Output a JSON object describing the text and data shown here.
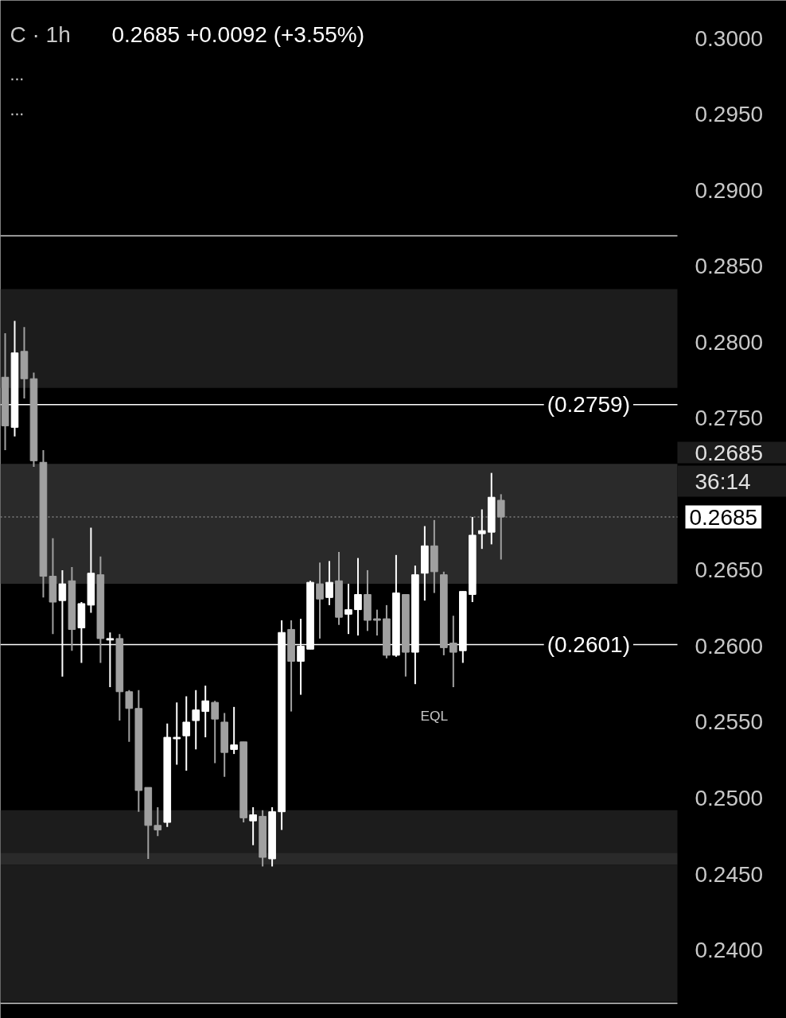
{
  "chart_data": {
    "type": "candlestick",
    "title": "C · 1h",
    "subtitle": "0.2685  +0.0092 (+3.55%)",
    "categories": [
      null,
      null,
      null,
      null,
      null,
      null,
      null,
      null,
      null,
      null,
      null,
      null,
      null,
      null,
      null,
      null,
      null,
      null,
      null,
      null,
      null,
      null,
      null,
      null,
      null,
      null,
      null,
      null,
      null,
      null,
      null,
      null,
      null,
      null,
      null,
      null,
      null,
      null,
      null,
      null,
      null,
      null,
      null,
      null,
      null,
      null,
      null,
      null,
      null,
      null,
      null,
      null,
      null,
      null,
      null,
      null,
      null,
      null,
      null,
      null,
      null,
      null,
      null,
      null,
      null,
      null,
      null,
      null,
      null,
      null,
      null
    ],
    "ohlc": [
      [
        0.2777,
        0.2806,
        0.2729,
        0.2745
      ],
      [
        0.2744,
        0.2814,
        0.2738,
        0.2793
      ],
      [
        0.2794,
        0.281,
        0.2763,
        0.2776
      ],
      [
        0.2776,
        0.278,
        0.2718,
        0.2722
      ],
      [
        0.2721,
        0.2729,
        0.2632,
        0.2646
      ],
      [
        0.2646,
        0.2671,
        0.2608,
        0.2629
      ],
      [
        0.263,
        0.265,
        0.258,
        0.2641
      ],
      [
        0.2643,
        0.2652,
        0.2597,
        0.2611
      ],
      [
        0.2612,
        0.2629,
        0.2589,
        0.2628
      ],
      [
        0.2627,
        0.2678,
        0.2622,
        0.2648
      ],
      [
        0.2647,
        0.2659,
        0.2589,
        0.2605
      ],
      [
        0.2604,
        0.2609,
        0.2573,
        0.2605
      ],
      [
        0.2605,
        0.2608,
        0.2551,
        0.257
      ],
      [
        0.257,
        0.2571,
        0.2537,
        0.2559
      ],
      [
        0.2559,
        0.2571,
        0.2491,
        0.2505
      ],
      [
        0.2507,
        0.2507,
        0.246,
        0.2482
      ],
      [
        0.2482,
        0.2494,
        0.2475,
        0.2479
      ],
      [
        0.2484,
        0.2549,
        0.2481,
        0.254
      ],
      [
        0.2539,
        0.2563,
        0.2522,
        0.254
      ],
      [
        0.2541,
        0.2567,
        0.2518,
        0.255
      ],
      [
        0.2551,
        0.2571,
        0.2532,
        0.2558
      ],
      [
        0.2557,
        0.2574,
        0.254,
        0.2564
      ],
      [
        0.2563,
        0.2564,
        0.2523,
        0.2552
      ],
      [
        0.255,
        0.2556,
        0.2514,
        0.253
      ],
      [
        0.2532,
        0.256,
        0.2529,
        0.2535
      ],
      [
        0.2537,
        0.2537,
        0.2484,
        0.2487
      ],
      [
        0.2485,
        0.2494,
        0.2469,
        0.2489
      ],
      [
        0.2488,
        0.2492,
        0.2455,
        0.2461
      ],
      [
        0.246,
        0.2494,
        0.2455,
        0.2491
      ],
      [
        0.2491,
        0.2617,
        0.2479,
        0.2609
      ],
      [
        0.2611,
        0.2617,
        0.2557,
        0.259
      ],
      [
        0.259,
        0.2618,
        0.2568,
        0.26
      ],
      [
        0.2598,
        0.2643,
        0.2598,
        0.2642
      ],
      [
        0.2641,
        0.2655,
        0.2605,
        0.2631
      ],
      [
        0.2632,
        0.2656,
        0.2627,
        0.2642
      ],
      [
        0.2643,
        0.2662,
        0.2614,
        0.2619
      ],
      [
        0.2621,
        0.2641,
        0.2608,
        0.2624
      ],
      [
        0.2624,
        0.2658,
        0.2607,
        0.2634
      ],
      [
        0.2634,
        0.265,
        0.261,
        0.2617
      ],
      [
        0.2618,
        0.2624,
        0.2607,
        0.2617
      ],
      [
        0.2618,
        0.2627,
        0.2592,
        0.2594
      ],
      [
        0.2594,
        0.266,
        0.2593,
        0.2635
      ],
      [
        0.2634,
        0.2634,
        0.258,
        0.2596
      ],
      [
        0.2596,
        0.2653,
        0.2575,
        0.2647
      ],
      [
        0.2648,
        0.2679,
        0.263,
        0.2666
      ],
      [
        0.2666,
        0.2683,
        0.2635,
        0.2649
      ],
      [
        0.2647,
        0.2649,
        0.2594,
        0.2599
      ],
      [
        0.2602,
        0.262,
        0.2573,
        0.2596
      ],
      [
        0.2597,
        0.2636,
        0.2589,
        0.2636
      ],
      [
        0.2634,
        0.2685,
        0.2629,
        0.2673
      ],
      [
        0.2674,
        0.269,
        0.2664,
        0.2676
      ],
      [
        0.2675,
        0.2714,
        0.2667,
        0.2698
      ],
      [
        0.2696,
        0.27,
        0.2657,
        0.2685
      ],
      null,
      null,
      null,
      null,
      null,
      null,
      null,
      null,
      null,
      null,
      null,
      null,
      null,
      null,
      null,
      null,
      null,
      null
    ],
    "colors": [
      "#a0a0a0",
      "#ffffff",
      "#a0a0a0",
      "#a0a0a0",
      "#a0a0a0",
      "#a0a0a0",
      "#ffffff",
      "#a0a0a0",
      "#ffffff",
      "#ffffff",
      "#a0a0a0",
      "#ffffff",
      "#a0a0a0",
      "#a0a0a0",
      "#a0a0a0",
      "#a0a0a0",
      "#a0a0a0",
      "#ffffff",
      "#ffffff",
      "#ffffff",
      "#ffffff",
      "#ffffff",
      "#a0a0a0",
      "#a0a0a0",
      "#ffffff",
      "#a0a0a0",
      "#ffffff",
      "#a0a0a0",
      "#ffffff",
      "#ffffff",
      "#a0a0a0",
      "#ffffff",
      "#ffffff",
      "#a0a0a0",
      "#ffffff",
      "#a0a0a0",
      "#ffffff",
      "#ffffff",
      "#a0a0a0",
      "#a0a0a0",
      "#a0a0a0",
      "#ffffff",
      "#a0a0a0",
      "#ffffff",
      "#ffffff",
      "#a0a0a0",
      "#a0a0a0",
      "#a0a0a0",
      "#ffffff",
      "#ffffff",
      "#ffffff",
      "#ffffff",
      "#a0a0a0",
      null,
      null,
      null,
      null,
      null,
      null,
      null,
      null,
      null,
      null,
      null,
      null,
      null,
      null,
      null,
      null,
      null,
      null
    ],
    "ylim": [
      0.2355,
      0.3025
    ],
    "yticks": [
      {
        "value": 0.24,
        "label": "0.2400"
      },
      {
        "value": 0.245,
        "label": "0.2450"
      },
      {
        "value": 0.25,
        "label": "0.2500"
      },
      {
        "value": 0.255,
        "label": "0.2550"
      },
      {
        "value": 0.26,
        "label": "0.2600"
      },
      {
        "value": 0.265,
        "label": "0.2650"
      },
      {
        "value": 0.275,
        "label": "0.2750"
      },
      {
        "value": 0.28,
        "label": "0.2800"
      },
      {
        "value": 0.285,
        "label": "0.2850"
      },
      {
        "value": 0.29,
        "label": "0.2900"
      },
      {
        "value": 0.295,
        "label": "0.2950"
      },
      {
        "value": 0.3,
        "label": "0.3000"
      }
    ],
    "tick_labels": "y",
    "ref_lines": [
      {
        "axis": "y",
        "value": 0.2759,
        "label": "(0.2759)",
        "color": "#ffffff"
      },
      {
        "axis": "y",
        "value": 0.2601,
        "label": "(0.2601)",
        "color": "#ffffff"
      },
      {
        "axis": "y",
        "value": 0.287,
        "label": null,
        "color": "#d0d0d0"
      },
      {
        "axis": "y",
        "value": 0.2365,
        "label": null,
        "color": "#d0d0d0"
      },
      {
        "axis": "y",
        "value": 0.2685,
        "label": "0.2685",
        "color": "#808080",
        "line_style": "dotted"
      }
    ],
    "bands": [
      {
        "axis": "y",
        "from": 0.277,
        "to": 0.2835,
        "label": null,
        "color": "#1c1c1c"
      },
      {
        "axis": "y",
        "from": 0.2641,
        "to": 0.272,
        "label": null,
        "color": "#2a2a2a"
      },
      {
        "axis": "y",
        "from": 0.2464,
        "to": 0.2492,
        "label": null,
        "color": "#1c1c1c"
      },
      {
        "axis": "y",
        "from": 0.2456,
        "to": 0.2464,
        "label": null,
        "color": "#2a2a2a"
      },
      {
        "axis": "y",
        "from": 0.2366,
        "to": 0.2456,
        "label": null,
        "color": "#1c1c1c"
      }
    ],
    "annotations": [
      "EQL",
      "...",
      "...",
      "0.2685",
      "36:14"
    ],
    "grid": false
  }
}
